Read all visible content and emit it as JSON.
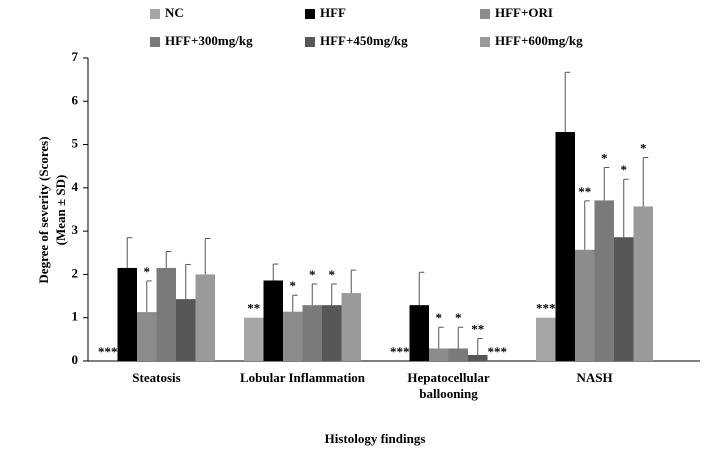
{
  "chart_data": {
    "type": "bar",
    "categories": [
      "Steatosis",
      "Lobular Inflammation",
      "Hepatocellular ballooning",
      "NASH"
    ],
    "series": [
      {
        "name": "NC",
        "color": "#a6a6a6",
        "values": [
          0,
          1.0,
          0,
          1.0
        ],
        "errors": [
          0,
          0,
          0,
          0
        ],
        "annotations": [
          "***",
          "**",
          "***",
          "***"
        ]
      },
      {
        "name": "HFF",
        "color": "#000000",
        "values": [
          2.15,
          1.86,
          1.29,
          5.29
        ],
        "errors": [
          0.7,
          0.38,
          0.76,
          1.38
        ],
        "annotations": [
          null,
          null,
          null,
          null
        ]
      },
      {
        "name": "HFF+ORI",
        "color": "#8c8c8c",
        "values": [
          1.13,
          1.14,
          0.29,
          2.57
        ],
        "errors": [
          0.72,
          0.38,
          0.49,
          1.13
        ],
        "annotations": [
          "*",
          "*",
          "*",
          "**"
        ]
      },
      {
        "name": "HFF+300mg/kg",
        "color": "#7a7a7a",
        "values": [
          2.15,
          1.29,
          0.29,
          3.71
        ],
        "errors": [
          0.38,
          0.49,
          0.49,
          0.76
        ],
        "annotations": [
          null,
          "*",
          "*",
          "*"
        ]
      },
      {
        "name": "HFF+450mg/kg",
        "color": "#575757",
        "values": [
          1.43,
          1.29,
          0.14,
          2.86
        ],
        "errors": [
          0.8,
          0.49,
          0.38,
          1.34
        ],
        "annotations": [
          null,
          "*",
          "**",
          "*"
        ]
      },
      {
        "name": "HFF+600mg/kg",
        "color": "#9a9a9a",
        "values": [
          2.0,
          1.57,
          0,
          3.57
        ],
        "errors": [
          0.83,
          0.53,
          0,
          1.13
        ],
        "annotations": [
          null,
          null,
          "***",
          "*"
        ]
      }
    ],
    "y_label": [
      "Degree of severity (Scores)",
      "(Mean ± SD)"
    ],
    "x_label": "Histology findings",
    "ylim": [
      0,
      7
    ],
    "yticks": [
      0,
      1,
      2,
      3,
      4,
      5,
      6,
      7
    ]
  }
}
